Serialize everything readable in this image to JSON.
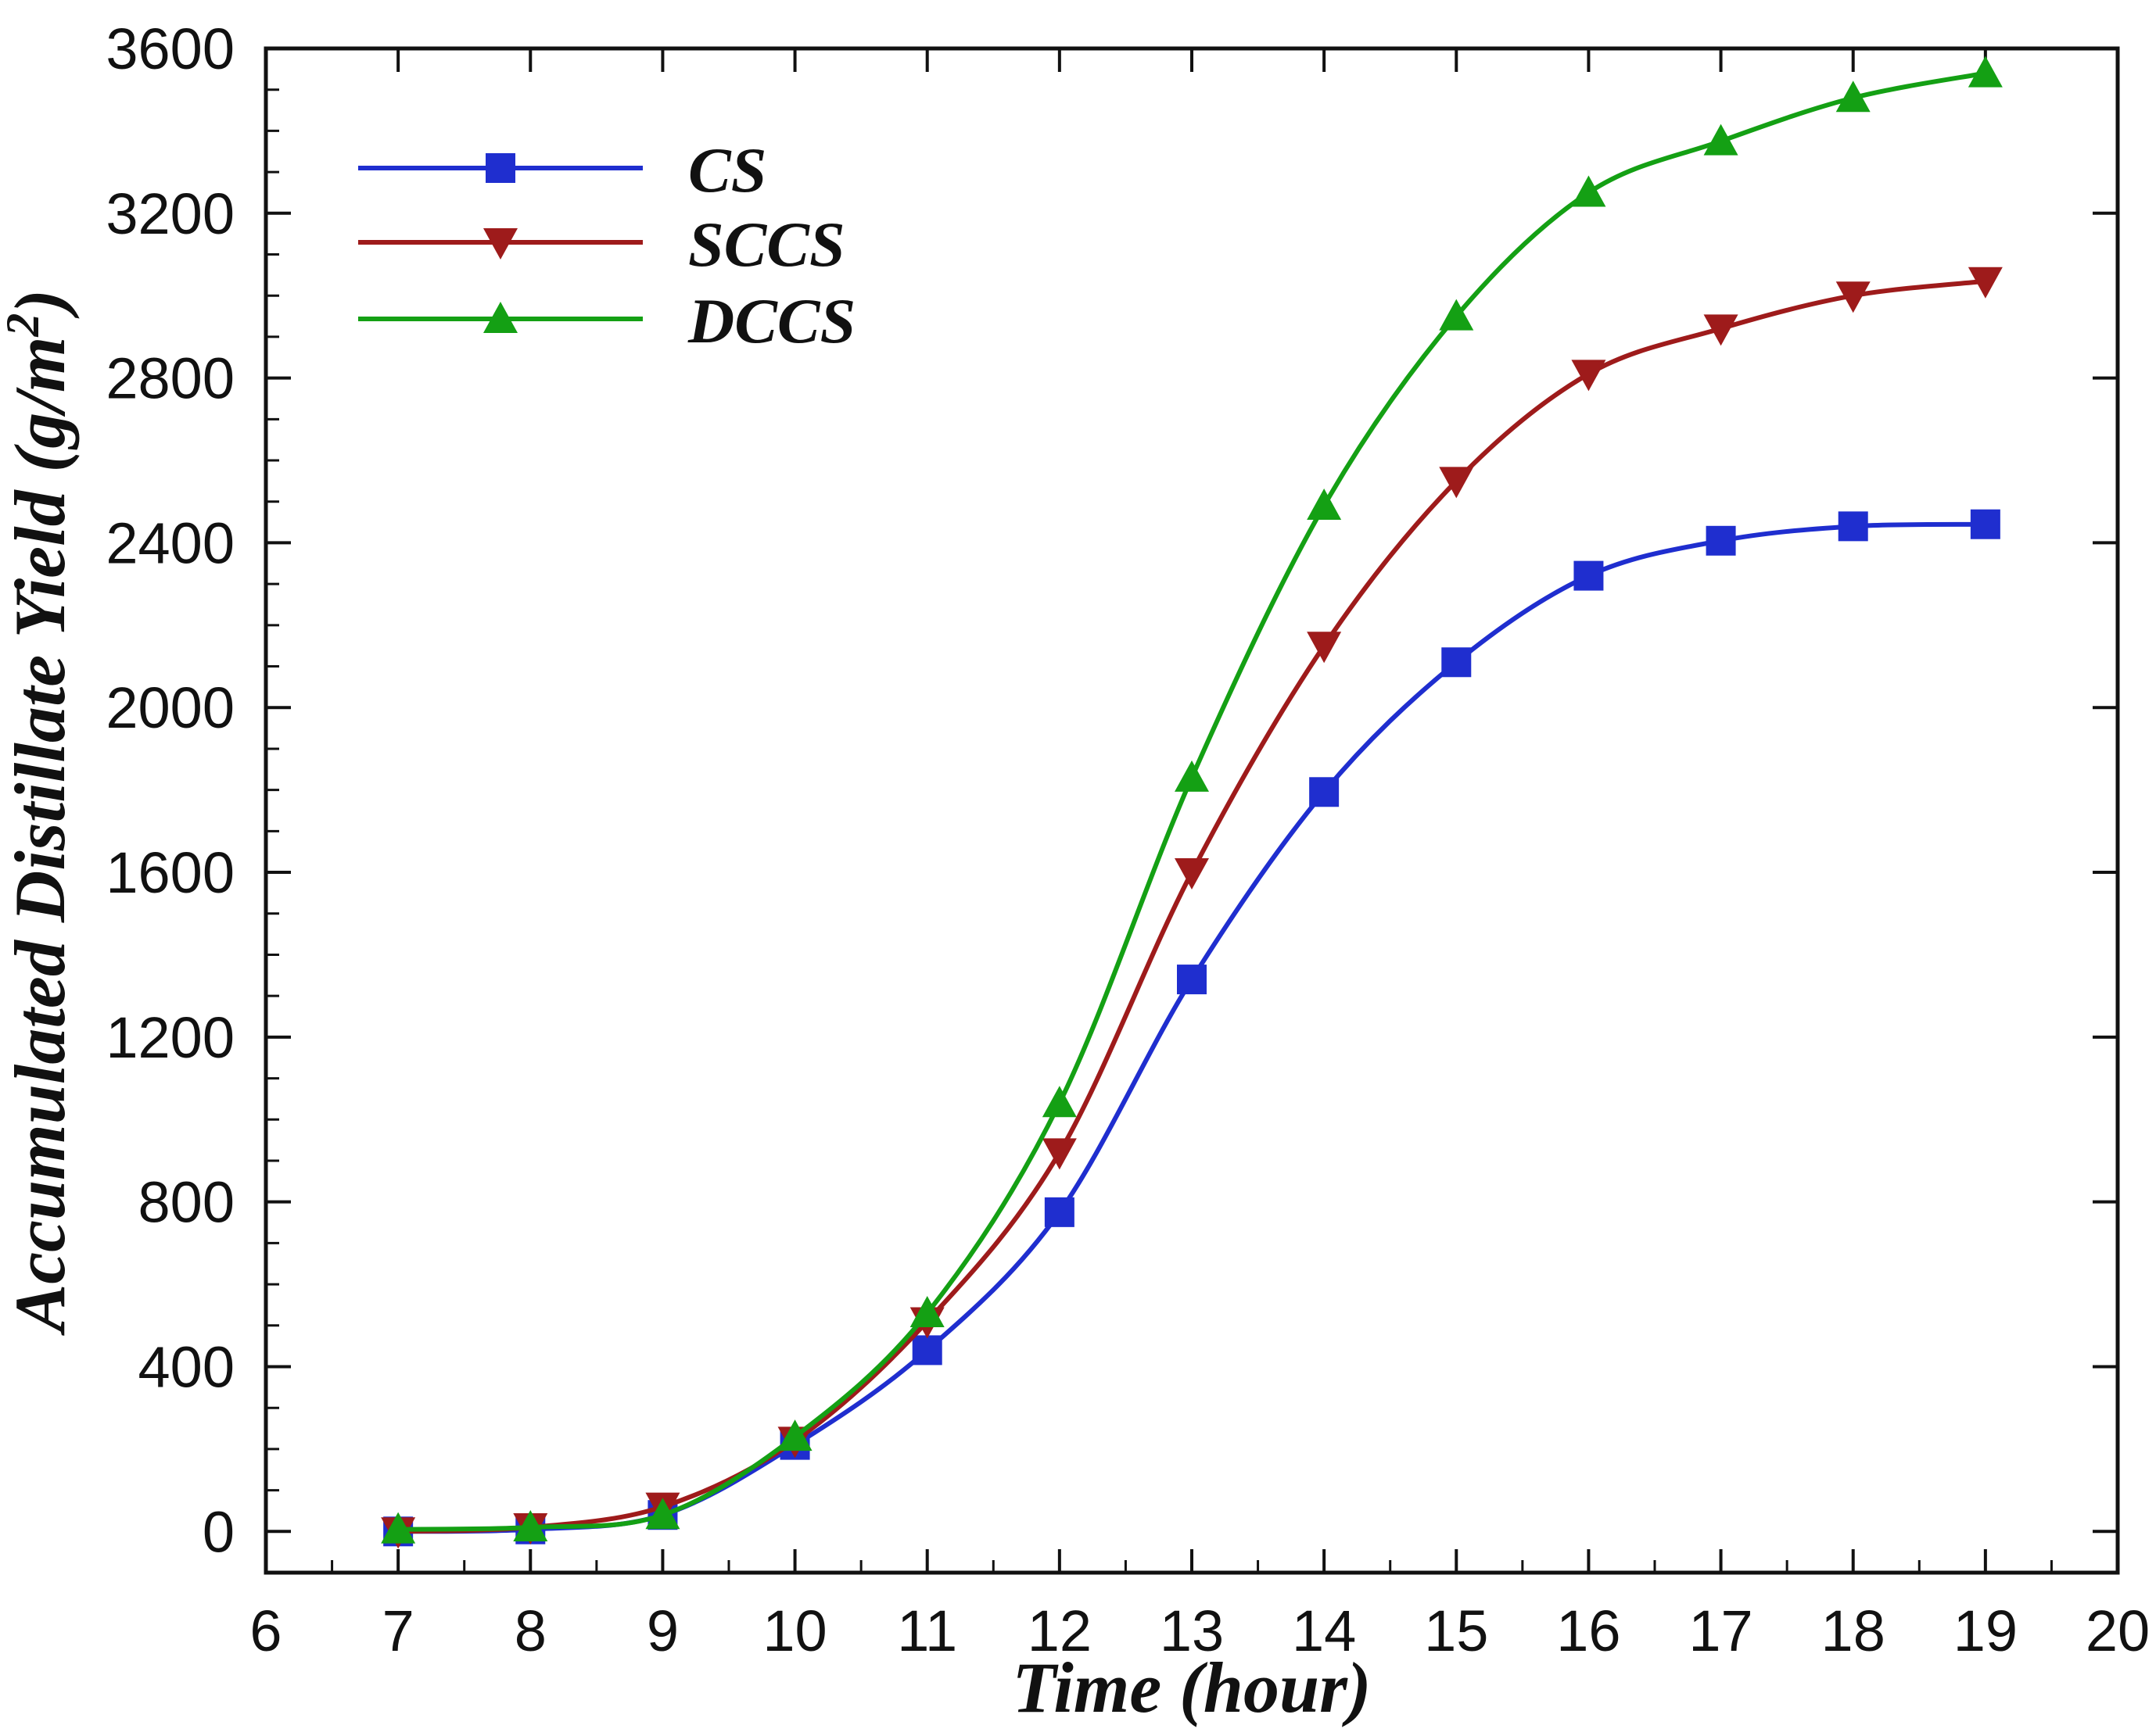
{
  "chart_data": {
    "type": "line",
    "xlabel": "Time (hour)",
    "ylabel": "Accumulated  Distillate Yield  (g/m",
    "ylabel_sup": "2",
    "ylabel_close": ")",
    "xlim": [
      6,
      20
    ],
    "ylim": [
      -100,
      3600
    ],
    "xticks": [
      6,
      7,
      8,
      9,
      10,
      11,
      12,
      13,
      14,
      15,
      16,
      17,
      18,
      19,
      20
    ],
    "yticks": [
      0,
      400,
      800,
      1200,
      1600,
      2000,
      2400,
      2800,
      3200,
      3600
    ],
    "legend_position": "top-left",
    "x": [
      7,
      8,
      9,
      10,
      11,
      12,
      13,
      14,
      15,
      16,
      17,
      18,
      19
    ],
    "series": [
      {
        "name": "CS",
        "color": "#1f2ecf",
        "marker": "square",
        "values": [
          0,
          5,
          40,
          210,
          440,
          775,
          1340,
          1795,
          2110,
          2320,
          2405,
          2440,
          2445
        ]
      },
      {
        "name": "SCCS",
        "color": "#9e1b1b",
        "marker": "triangle-down",
        "values": [
          0,
          10,
          60,
          220,
          510,
          920,
          1600,
          2150,
          2550,
          2810,
          2920,
          3000,
          3035
        ]
      },
      {
        "name": "DCCS",
        "color": "#14a014",
        "marker": "triangle-up",
        "values": [
          5,
          10,
          40,
          230,
          530,
          1040,
          1830,
          2490,
          2950,
          3250,
          3375,
          3480,
          3540
        ]
      }
    ]
  }
}
